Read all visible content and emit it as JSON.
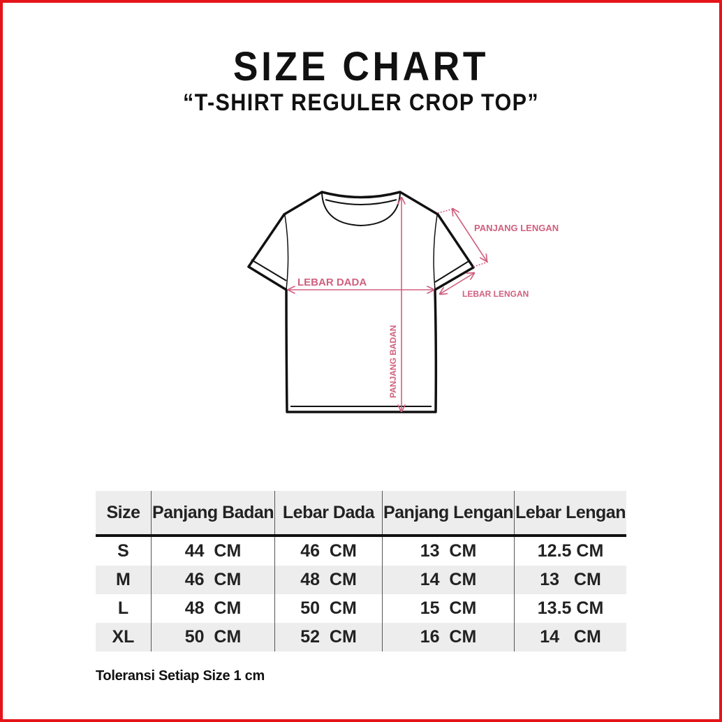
{
  "title": "SIZE CHART",
  "subtitle": "“T-SHIRT REGULER CROP TOP”",
  "diagram": {
    "labels": {
      "lebar_dada": "LEBAR DADA",
      "panjang_badan": "PANJANG BADAN",
      "panjang_lengan": "PANJANG LENGAN",
      "lebar_lengan": "LEBAR LENGAN"
    },
    "accent_color": "#d0607f"
  },
  "table": {
    "headers": [
      "Size",
      "Panjang Badan",
      "Lebar Dada",
      "Panjang Lengan",
      "Lebar Lengan"
    ],
    "rows": [
      [
        "S",
        "44  CM",
        "46  CM",
        "13  CM",
        "12.5 CM"
      ],
      [
        "M",
        "46  CM",
        "48  CM",
        "14  CM",
        "13   CM"
      ],
      [
        "L",
        "48  CM",
        "50  CM",
        "15  CM",
        "13.5 CM"
      ],
      [
        "XL",
        "50  CM",
        "52  CM",
        "16  CM",
        "14   CM"
      ]
    ]
  },
  "note": "Toleransi Setiap Size 1 cm",
  "frame_color": "#e5141b"
}
